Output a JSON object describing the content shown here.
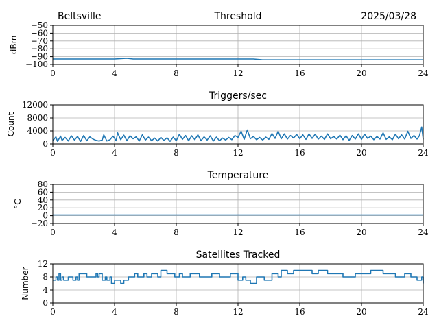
{
  "header": {
    "location": "Beltsville",
    "date": "2025/03/28"
  },
  "chart_data": [
    {
      "type": "line",
      "title": "Threshold",
      "xlabel": "",
      "ylabel": "dBm",
      "xlim": [
        0,
        24
      ],
      "ylim": [
        -100,
        -50
      ],
      "x_ticks": [
        "0",
        "4",
        "8",
        "12",
        "16",
        "20",
        "24"
      ],
      "y_ticks": [
        "−50",
        "−60",
        "−70",
        "−80",
        "−90",
        "−100"
      ],
      "grid": true,
      "series": [
        {
          "color": "#1f77b4",
          "x": [
            0,
            1,
            2,
            3,
            4,
            4.8,
            5.2,
            6,
            8,
            10,
            12,
            13,
            13.6,
            16,
            20,
            24
          ],
          "y": [
            -93,
            -93,
            -93,
            -93,
            -93,
            -92,
            -93,
            -93,
            -93,
            -93,
            -93,
            -93,
            -94,
            -94,
            -94,
            -94
          ]
        }
      ]
    },
    {
      "type": "line",
      "title": "Triggers/sec",
      "xlabel": "",
      "ylabel": "Count",
      "xlim": [
        0,
        24
      ],
      "ylim": [
        0,
        12000
      ],
      "x_ticks": [
        "0",
        "4",
        "8",
        "12",
        "16",
        "20",
        "24"
      ],
      "y_ticks": [
        "12000",
        "8000",
        "4000",
        "0"
      ],
      "grid": true,
      "series": [
        {
          "color": "#1f77b4",
          "x": [
            0,
            0.2,
            0.3,
            0.5,
            0.6,
            0.8,
            1.0,
            1.2,
            1.4,
            1.6,
            1.8,
            2.0,
            2.2,
            2.4,
            2.6,
            2.8,
            3.0,
            3.2,
            3.3,
            3.5,
            3.7,
            3.9,
            4.1,
            4.2,
            4.4,
            4.6,
            4.8,
            5.0,
            5.2,
            5.4,
            5.6,
            5.8,
            6.0,
            6.2,
            6.4,
            6.6,
            6.8,
            7.0,
            7.2,
            7.4,
            7.6,
            7.8,
            8.0,
            8.2,
            8.4,
            8.6,
            8.8,
            9.0,
            9.2,
            9.4,
            9.6,
            9.8,
            10.0,
            10.2,
            10.4,
            10.6,
            10.8,
            11.0,
            11.2,
            11.4,
            11.6,
            11.8,
            12.0,
            12.2,
            12.4,
            12.6,
            12.8,
            13.0,
            13.2,
            13.4,
            13.6,
            13.8,
            14.0,
            14.2,
            14.4,
            14.6,
            14.8,
            15.0,
            15.2,
            15.4,
            15.6,
            15.8,
            16.0,
            16.2,
            16.4,
            16.6,
            16.8,
            17.0,
            17.2,
            17.4,
            17.6,
            17.8,
            18.0,
            18.2,
            18.4,
            18.6,
            18.8,
            19.0,
            19.2,
            19.4,
            19.6,
            19.8,
            20.0,
            20.2,
            20.4,
            20.6,
            20.8,
            21.0,
            21.2,
            21.4,
            21.6,
            21.8,
            22.0,
            22.2,
            22.4,
            22.6,
            22.8,
            23.0,
            23.2,
            23.4,
            23.6,
            23.75,
            23.9,
            24.0
          ],
          "y": [
            1000,
            2200,
            800,
            2400,
            1100,
            2000,
            900,
            2500,
            1200,
            2300,
            800,
            2600,
            1000,
            2200,
            1500,
            1100,
            900,
            1200,
            2800,
            900,
            1300,
            2400,
            1000,
            3400,
            1300,
            2700,
            1000,
            2500,
            1600,
            2200,
            900,
            2800,
            1200,
            2100,
            1000,
            1800,
            900,
            2000,
            1100,
            1900,
            800,
            2100,
            1000,
            3000,
            1400,
            2600,
            1000,
            2500,
            1300,
            2800,
            1000,
            2200,
            1200,
            2500,
            900,
            2100,
            1000,
            1800,
            1200,
            2000,
            1300,
            2600,
            2000,
            3900,
            1400,
            4300,
            1600,
            2300,
            1300,
            2000,
            1200,
            2100,
            1400,
            3200,
            1700,
            3900,
            1600,
            3100,
            1500,
            2600,
            1800,
            2900,
            1600,
            2800,
            1400,
            3100,
            1700,
            3000,
            1500,
            2400,
            1400,
            3100,
            1600,
            2300,
            1500,
            2700,
            1300,
            2500,
            1100,
            2600,
            1500,
            3100,
            1400,
            3000,
            1700,
            2400,
            1300,
            2300,
            1500,
            3400,
            1400,
            2200,
            1300,
            3000,
            1600,
            2800,
            1500,
            3900,
            1700,
            2600,
            1500,
            2500,
            5200,
            1400
          ]
        }
      ]
    },
    {
      "type": "line",
      "title": "Temperature",
      "xlabel": "",
      "ylabel": "°C",
      "xlim": [
        0,
        24
      ],
      "ylim": [
        -20,
        80
      ],
      "x_ticks": [
        "0",
        "4",
        "8",
        "12",
        "16",
        "20",
        "24"
      ],
      "y_ticks": [
        "80",
        "60",
        "40",
        "20",
        "0",
        "−20"
      ],
      "grid": true,
      "series": [
        {
          "color": "#1f77b4",
          "x": [
            0,
            24
          ],
          "y": [
            2,
            2
          ]
        }
      ]
    },
    {
      "type": "line",
      "title": "Satellites Tracked",
      "xlabel": "",
      "ylabel": "Number",
      "xlim": [
        0,
        24
      ],
      "ylim": [
        0,
        12
      ],
      "x_ticks": [
        "0",
        "4",
        "8",
        "12",
        "16",
        "20",
        "24"
      ],
      "y_ticks": [
        "12",
        "8",
        "4",
        "0"
      ],
      "grid": true,
      "step": true,
      "series": [
        {
          "color": "#1f77b4",
          "x": [
            0,
            0.2,
            0.3,
            0.4,
            0.5,
            0.6,
            0.7,
            1.0,
            1.3,
            1.5,
            1.6,
            1.7,
            2.2,
            2.8,
            2.9,
            3.0,
            3.2,
            3.4,
            3.5,
            3.7,
            3.8,
            4.0,
            4.4,
            4.6,
            4.9,
            5.3,
            5.5,
            5.9,
            6.1,
            6.4,
            6.8,
            7.0,
            7.4,
            7.9,
            8.2,
            8.4,
            8.9,
            9.5,
            10.3,
            10.8,
            11.5,
            12.0,
            12.3,
            12.5,
            12.8,
            13.2,
            13.7,
            14.2,
            14.6,
            14.8,
            15.2,
            15.6,
            16.0,
            16.8,
            17.2,
            17.8,
            18.2,
            18.8,
            19.6,
            20.2,
            20.6,
            21.4,
            22.2,
            22.8,
            23.2,
            23.6,
            23.9,
            24.0
          ],
          "y": [
            7,
            8,
            7,
            9,
            7,
            8,
            7,
            8,
            7,
            8,
            7,
            9,
            8,
            9,
            8,
            9,
            7,
            8,
            7,
            8,
            6,
            7,
            6,
            7,
            8,
            9,
            8,
            9,
            8,
            9,
            8,
            10,
            9,
            8,
            9,
            8,
            9,
            8,
            9,
            8,
            9,
            7,
            8,
            7,
            6,
            8,
            7,
            9,
            8,
            10,
            9,
            10,
            10,
            9,
            10,
            9,
            9,
            8,
            9,
            9,
            10,
            9,
            8,
            9,
            8,
            7,
            8,
            6
          ]
        }
      ]
    }
  ]
}
